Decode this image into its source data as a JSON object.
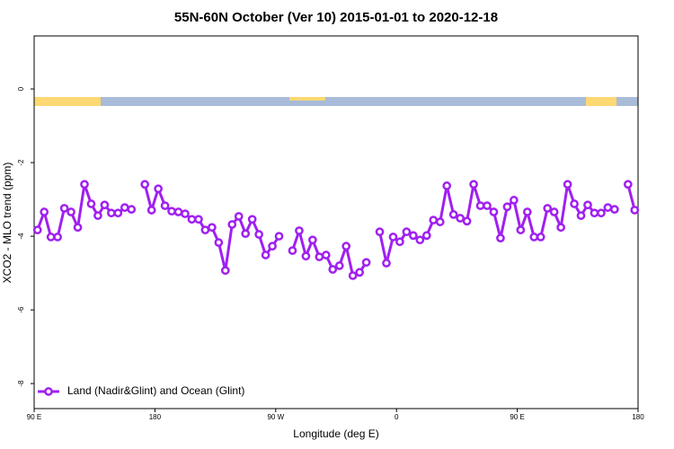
{
  "chart_data": {
    "type": "line",
    "title": "55N-60N October (Ver 10)   2015-01-01 to 2020-12-18",
    "x_label": "Longitude (deg E)",
    "y_label": "XCO2 - MLO trend (ppm)",
    "x": [
      92.5,
      97.5,
      102.5,
      107.5,
      112.5,
      117.5,
      122.5,
      127.5,
      132.5,
      137.5,
      142.5,
      147.5,
      152.5,
      157.5,
      162.5,
      167.5,
      172.5,
      177.5,
      182.5,
      187.5,
      192.5,
      197.5,
      202.5,
      207.5,
      212.5,
      217.5,
      222.5,
      227.5,
      232.5,
      237.5,
      242.5,
      247.5,
      252.5,
      257.5,
      262.5,
      267.5,
      272.5,
      277.5,
      282.5,
      287.5,
      292.5,
      297.5,
      302.5,
      307.5,
      312.5,
      317.5,
      322.5,
      327.5,
      332.5,
      337.5,
      342.5,
      347.5,
      352.5,
      357.5,
      362.5,
      367.5,
      372.5,
      377.5,
      382.5,
      387.5,
      392.5,
      397.5,
      402.5,
      407.5,
      412.5,
      417.5,
      422.5,
      427.5,
      432.5,
      437.5,
      442.5,
      447.5,
      452.5,
      457.5,
      462.5,
      467.5,
      472.5,
      477.5,
      482.5,
      487.5,
      492.5,
      497.5,
      502.5,
      507.5,
      512.5,
      517.5,
      522.5,
      527.5,
      532.5,
      537.5
    ],
    "series": [
      {
        "name": "Land (Nadir&Glint) and Ocean (Glint)",
        "color": "#a020f0",
        "values": [
          -3.83,
          -3.34,
          -4.02,
          -4.02,
          -3.24,
          -3.34,
          -3.76,
          -2.59,
          -3.12,
          -3.44,
          -3.15,
          -3.37,
          -3.37,
          -3.22,
          -3.27,
          null,
          -2.59,
          -3.29,
          -2.71,
          -3.17,
          -3.32,
          -3.34,
          -3.39,
          -3.54,
          -3.54,
          -3.83,
          -3.76,
          -4.17,
          -4.93,
          -3.68,
          -3.46,
          -3.93,
          -3.54,
          -3.95,
          -4.51,
          -4.27,
          -4.0,
          null,
          -4.39,
          -3.85,
          -4.54,
          -4.1,
          -4.56,
          -4.51,
          -4.9,
          -4.8,
          -4.27,
          -5.07,
          -4.98,
          -4.71,
          null,
          -3.88,
          -4.73,
          -4.02,
          -4.15,
          -3.88,
          -3.98,
          -4.1,
          -3.98,
          -3.56,
          -3.61,
          -2.63,
          -3.41,
          -3.51,
          -3.59,
          -2.59,
          -3.17,
          -3.17,
          -3.34,
          -4.05,
          -3.2,
          -3.02,
          -3.83,
          -3.34,
          -4.02,
          -4.02,
          -3.24,
          -3.34,
          -3.76,
          -2.59,
          -3.12,
          -3.44,
          -3.15,
          -3.37,
          -3.37,
          -3.22,
          -3.27,
          null,
          -2.59,
          -3.29
        ]
      }
    ],
    "xlim": [
      90,
      540
    ],
    "xticks": [
      {
        "value": 90,
        "label": "90 E"
      },
      {
        "value": 180,
        "label": "180"
      },
      {
        "value": 270,
        "label": "90 W"
      },
      {
        "value": 360,
        "label": "0"
      },
      {
        "value": 450,
        "label": "90 E"
      },
      {
        "value": 540,
        "label": "180"
      }
    ],
    "ylim": [
      -8.68,
      1.44
    ],
    "yticks": [
      0,
      -2,
      -4,
      -6,
      -8
    ],
    "legend": "bottom-left"
  }
}
